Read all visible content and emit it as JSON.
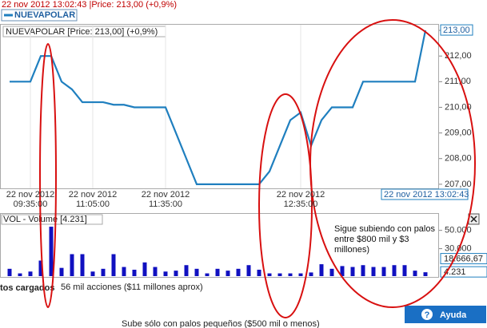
{
  "header": {
    "text": "22 nov 2012 13:02:43 |Price: 213,00 (+0,9%)",
    "legend": "NUEVAPOLAR"
  },
  "chart_data": [
    {
      "type": "line",
      "title": "NUEVAPOLAR [Price: 213,00] (+0,9%)",
      "categories": [
        null,
        null,
        "22 nov 2012 09:35:00",
        null,
        null,
        null,
        null,
        null,
        "22 nov 2012 11:05:00",
        null,
        null,
        null,
        null,
        null,
        null,
        "22 nov 2012 11:35:00",
        null,
        null,
        null,
        null,
        null,
        null,
        null,
        null,
        null,
        null,
        null,
        null,
        "22 nov 2012 12:35:00",
        null,
        null,
        null,
        null,
        null,
        null,
        null,
        null,
        null,
        null,
        null,
        null
      ],
      "series": [
        {
          "name": "NUEVAPOLAR",
          "color": "#1f7fbf",
          "values": [
            211,
            211,
            211,
            212,
            212,
            211,
            210.7,
            210.2,
            210.2,
            210.2,
            210.1,
            210.1,
            210,
            210,
            210,
            210,
            209,
            208,
            207,
            207,
            207,
            207,
            207,
            207,
            207,
            207.5,
            208.5,
            209.5,
            209.8,
            208.5,
            209.5,
            210,
            210,
            210,
            211,
            211,
            211,
            211,
            211,
            211,
            213
          ]
        }
      ],
      "ylim": [
        206.84,
        213.22
      ],
      "yticks": [
        {
          "value": 207,
          "label": "207,00"
        },
        {
          "value": 208,
          "label": "208,00"
        },
        {
          "value": 209,
          "label": "209,00"
        },
        {
          "value": 210,
          "label": "210,00"
        },
        {
          "value": 211,
          "label": "211,00"
        },
        {
          "value": 212,
          "label": "212,00"
        },
        {
          "value": 213,
          "label": "213,00"
        }
      ],
      "last_price": {
        "value": 213,
        "label": "213,00"
      },
      "last_time": "22 nov 2012 13:02:43"
    },
    {
      "type": "bar",
      "title": "VOL - Volume [4.231]",
      "color": "#1010c0",
      "values": [
        8000,
        3000,
        5000,
        17000,
        54000,
        9000,
        24000,
        24000,
        5000,
        8000,
        24000,
        10000,
        7000,
        15000,
        10000,
        5000,
        6000,
        12000,
        8000,
        3000,
        8000,
        6000,
        8000,
        12000,
        7000,
        3000,
        3000,
        3000,
        3000,
        4000,
        13000,
        8000,
        11000,
        10000,
        12000,
        10000,
        10000,
        12000,
        12000,
        6000,
        4231
      ],
      "ylim": [
        0,
        68000
      ],
      "yticks": [
        {
          "value": 30000,
          "label": "30.000"
        },
        {
          "value": 50000,
          "label": "50.000"
        }
      ],
      "avg_marker": {
        "value": 18666.67,
        "label": "18.666,67"
      },
      "last_marker": {
        "value": 4231,
        "label": "4.231"
      }
    }
  ],
  "annotations": {
    "right_note": [
      "Sigue subiendo con palos",
      "entre $800 mil y $3",
      "millones)"
    ],
    "status_left": "tos cargados",
    "status_note": "56 mil acciones ($11 millones aprox)",
    "bottom_note": "Sube sólo con palos pequeños ($500 mil o menos)",
    "help_button": "Ayuda"
  }
}
